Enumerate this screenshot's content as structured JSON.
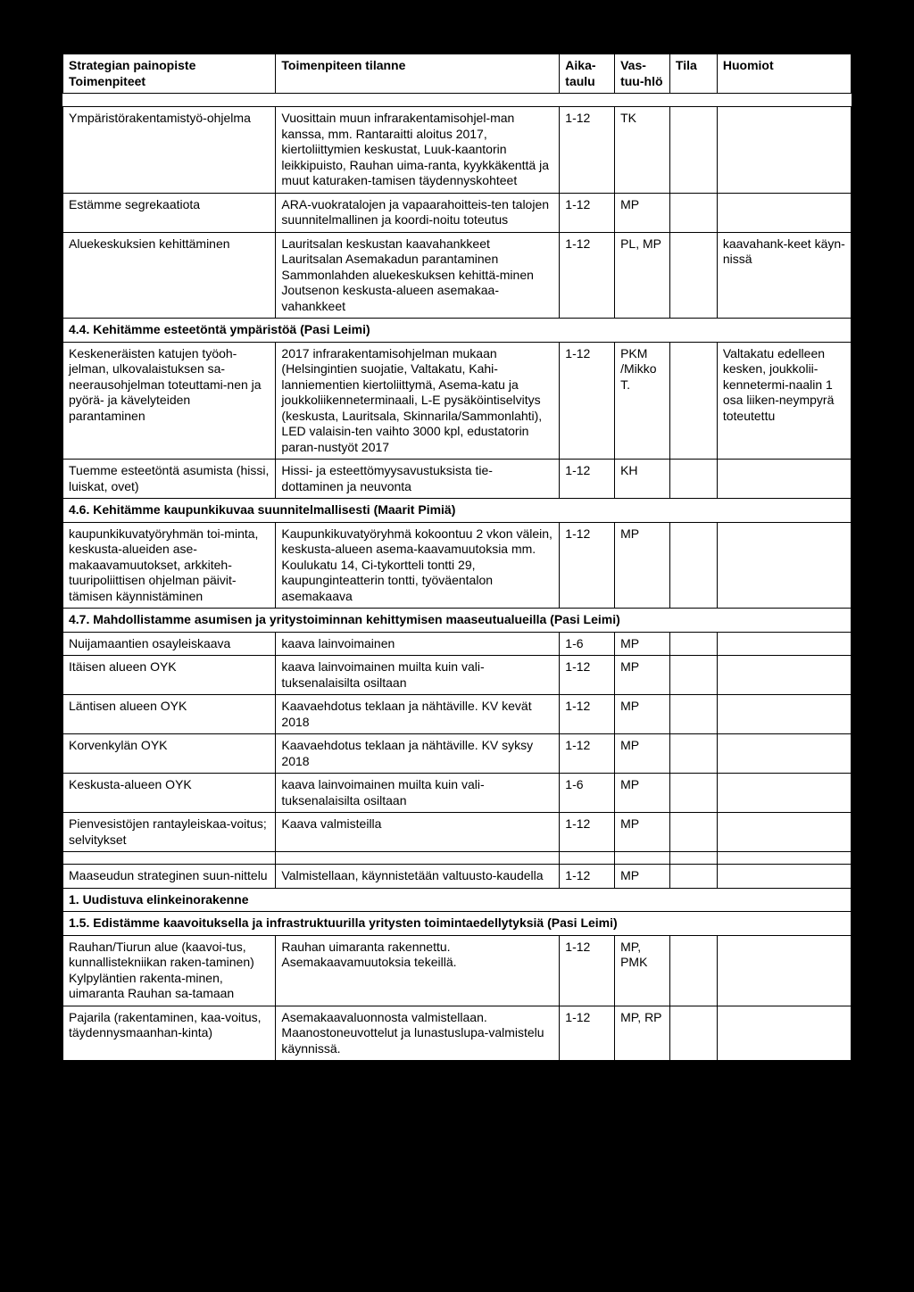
{
  "header": {
    "c1": "Strategian painopiste Toimenpiteet",
    "c2": "Toimenpiteen tilanne",
    "c3": "Aika-taulu",
    "c4": "Vas-tuu-hlö",
    "c5": "Tila",
    "c6": "Huomiot"
  },
  "rows": [
    {
      "type": "row",
      "c1": "Ympäristörakentamistyö-ohjelma",
      "c2": "Vuosittain muun infrarakentamisohjel-man kanssa, mm. Rantaraitti aloitus 2017, kiertoliittymien keskustat, Luuk-kaantorin leikkipuisto, Rauhan uima-ranta, kyykkäkenttä ja muut katuraken-tamisen täydennyskohteet",
      "c3": "1-12",
      "c4": "TK",
      "c5": "",
      "c6": ""
    },
    {
      "type": "row",
      "c1": "Estämme segrekaatiota",
      "c2": "ARA-vuokratalojen ja vapaarahoitteis-ten talojen suunnitelmallinen ja koordi-noitu toteutus",
      "c3": "1-12",
      "c4": "MP",
      "c5": "",
      "c6": ""
    },
    {
      "type": "row",
      "c1": "Aluekeskuksien kehittäminen",
      "c2": "Lauritsalan keskustan kaavahankkeet Lauritsalan Asemakadun parantaminen Sammonlahden aluekeskuksen kehittä-minen Joutsenon keskusta-alueen asemakaa-vahankkeet",
      "c3": "1-12",
      "c4": "PL, MP",
      "c5": "",
      "c6": "kaavahank-keet käyn-nissä"
    },
    {
      "type": "section",
      "text": "4.4. Kehitämme esteetöntä ympäristöä (Pasi Leimi)"
    },
    {
      "type": "row",
      "c1": "Keskeneräisten katujen työoh-jelman, ulkovalaistuksen sa-neerausohjelman toteuttami-nen ja pyörä- ja kävelyteiden parantaminen",
      "c2": "2017 infrarakentamisohjelman mukaan (Helsingintien suojatie, Valtakatu, Kahi-lanniementien kiertoliittymä, Asema-katu ja joukkoliikenneterminaali, L-E pysäköintiselvitys (keskusta, Lauritsala, Skinnarila/Sammonlahti), LED valaisin-ten vaihto 3000 kpl, edustatorin paran-nustyöt 2017",
      "c3": "1-12",
      "c4": "PKM /Mikko T.",
      "c5": "",
      "c6": "Valtakatu edelleen kesken, joukkolii-kennetermi-naalin 1 osa liiken-neympyrä toteutettu"
    },
    {
      "type": "row",
      "c1": "Tuemme esteetöntä asumista (hissi, luiskat, ovet)",
      "c2": "Hissi- ja esteettömyysavustuksista tie-dottaminen ja neuvonta",
      "c3": "1-12",
      "c4": "KH",
      "c5": "",
      "c6": ""
    },
    {
      "type": "section",
      "text": "4.6. Kehitämme kaupunkikuvaa suunnitelmallisesti (Maarit Pimiä)"
    },
    {
      "type": "row",
      "c1": "kaupunkikuvatyöryhmän toi-minta, keskusta-alueiden ase-makaavamuutokset, arkkiteh-tuuripoliittisen ohjelman päivit-tämisen käynnistäminen",
      "c2": "Kaupunkikuvatyöryhmä kokoontuu 2 vkon välein, keskusta-alueen asema-kaavamuutoksia mm. Koulukatu 14, Ci-tykortteli tontti 29, kaupunginteatterin tontti, työväentalon asemakaava",
      "c3": "1-12",
      "c4": "MP",
      "c5": "",
      "c6": ""
    },
    {
      "type": "section",
      "text": "4.7. Mahdollistamme asumisen ja yritystoiminnan kehittymisen maaseutualueilla (Pasi Leimi)"
    },
    {
      "type": "row",
      "c1": "Nuijamaantien osayleiskaava",
      "c2": "kaava lainvoimainen",
      "c3": "1-6",
      "c4": "MP",
      "c5": "",
      "c6": ""
    },
    {
      "type": "row",
      "c1": "Itäisen alueen OYK",
      "c2": "kaava lainvoimainen muilta kuin vali-tuksenalaisilta osiltaan",
      "c3": "1-12",
      "c4": "MP",
      "c5": "",
      "c6": ""
    },
    {
      "type": "row",
      "c1": "Läntisen alueen OYK",
      "c2": "Kaavaehdotus teklaan ja nähtäville. KV kevät 2018",
      "c3": "1-12",
      "c4": "MP",
      "c5": "",
      "c6": ""
    },
    {
      "type": "row",
      "c1": "Korvenkylän OYK",
      "c2": "Kaavaehdotus teklaan ja nähtäville. KV syksy 2018",
      "c3": "1-12",
      "c4": "MP",
      "c5": "",
      "c6": ""
    },
    {
      "type": "row",
      "c1": "Keskusta-alueen OYK",
      "c2": "kaava lainvoimainen muilta kuin vali-tuksenalaisilta osiltaan",
      "c3": "1-6",
      "c4": "MP",
      "c5": "",
      "c6": ""
    },
    {
      "type": "row",
      "c1": "Pienvesistöjen rantayleiskaa-voitus; selvitykset",
      "c2": "Kaava valmisteilla",
      "c3": "1-12",
      "c4": "MP",
      "c5": "",
      "c6": ""
    },
    {
      "type": "gap"
    },
    {
      "type": "row",
      "c1": "Maaseudun strateginen suun-nittelu",
      "c2": "Valmistellaan, käynnistetään valtuusto-kaudella",
      "c3": "1-12",
      "c4": "MP",
      "c5": "",
      "c6": ""
    },
    {
      "type": "section",
      "text": "1. Uudistuva elinkeinorakenne"
    },
    {
      "type": "section",
      "text": "1.5. Edistämme kaavoituksella ja infrastruktuurilla yritysten toimintaedellytyksiä (Pasi Leimi)"
    },
    {
      "type": "row",
      "c1": "Rauhan/Tiurun alue (kaavoi-tus, kunnallistekniikan raken-taminen) Kylpyläntien rakenta-minen, uimaranta Rauhan sa-tamaan",
      "c2": "Rauhan uimaranta rakennettu. Asemakaavamuutoksia tekeillä.",
      "c3": "1-12",
      "c4": "MP, PMK",
      "c5": "",
      "c6": ""
    },
    {
      "type": "row",
      "c1": "Pajarila (rakentaminen, kaa-voitus, täydennysmaanhan-kinta)",
      "c2": "Asemakaavaluonnosta valmistellaan. Maanostoneuvottelut ja lunastuslupa-valmistelu käynnissä.",
      "c3": "1-12",
      "c4": "MP, RP",
      "c5": "",
      "c6": ""
    }
  ]
}
